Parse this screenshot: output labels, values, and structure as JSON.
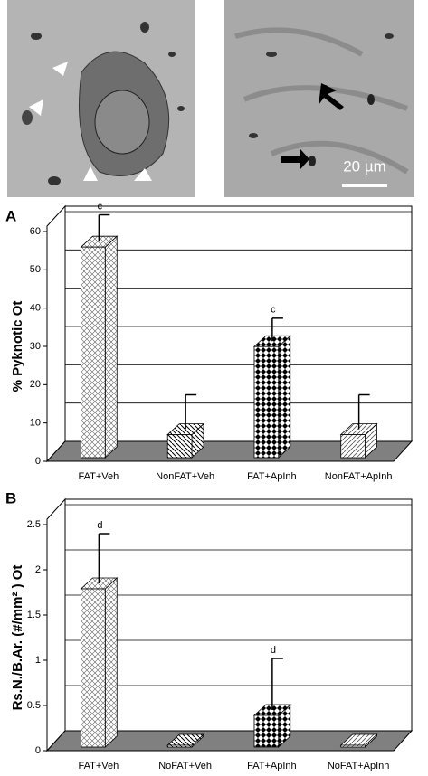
{
  "images": {
    "scale_bar_label": "20 µm"
  },
  "chart_data": [
    {
      "type": "bar",
      "panel_label": "A",
      "y_label": "% Pyknotic Ot",
      "categories": [
        "FAT+Veh",
        "NonFAT+Veh",
        "FAT+ApInh",
        "NonFAT+ApInh"
      ],
      "values": [
        55,
        6,
        29,
        6
      ],
      "errors": [
        7,
        9,
        6,
        9
      ],
      "annotations": [
        "c",
        null,
        "c",
        null
      ],
      "ylim": [
        0,
        60
      ],
      "yticks": [
        0,
        10,
        20,
        30,
        40,
        50,
        60
      ],
      "grid": true
    },
    {
      "type": "bar",
      "panel_label": "B",
      "y_label": "Rs.N./B.Ar. (#/mm² ) Ot",
      "categories": [
        "FAT+Veh",
        "NoFAT+Veh",
        "FAT+ApInh",
        "NoFAT+ApInh"
      ],
      "values": [
        1.75,
        0.02,
        0.35,
        0.02
      ],
      "errors": [
        0.55,
        0,
        0.57,
        0
      ],
      "annotations": [
        "d",
        null,
        "d",
        null
      ],
      "ylim": [
        0,
        2.5
      ],
      "yticks": [
        0,
        0.5,
        1,
        1.5,
        2,
        2.5
      ],
      "grid": true
    }
  ]
}
